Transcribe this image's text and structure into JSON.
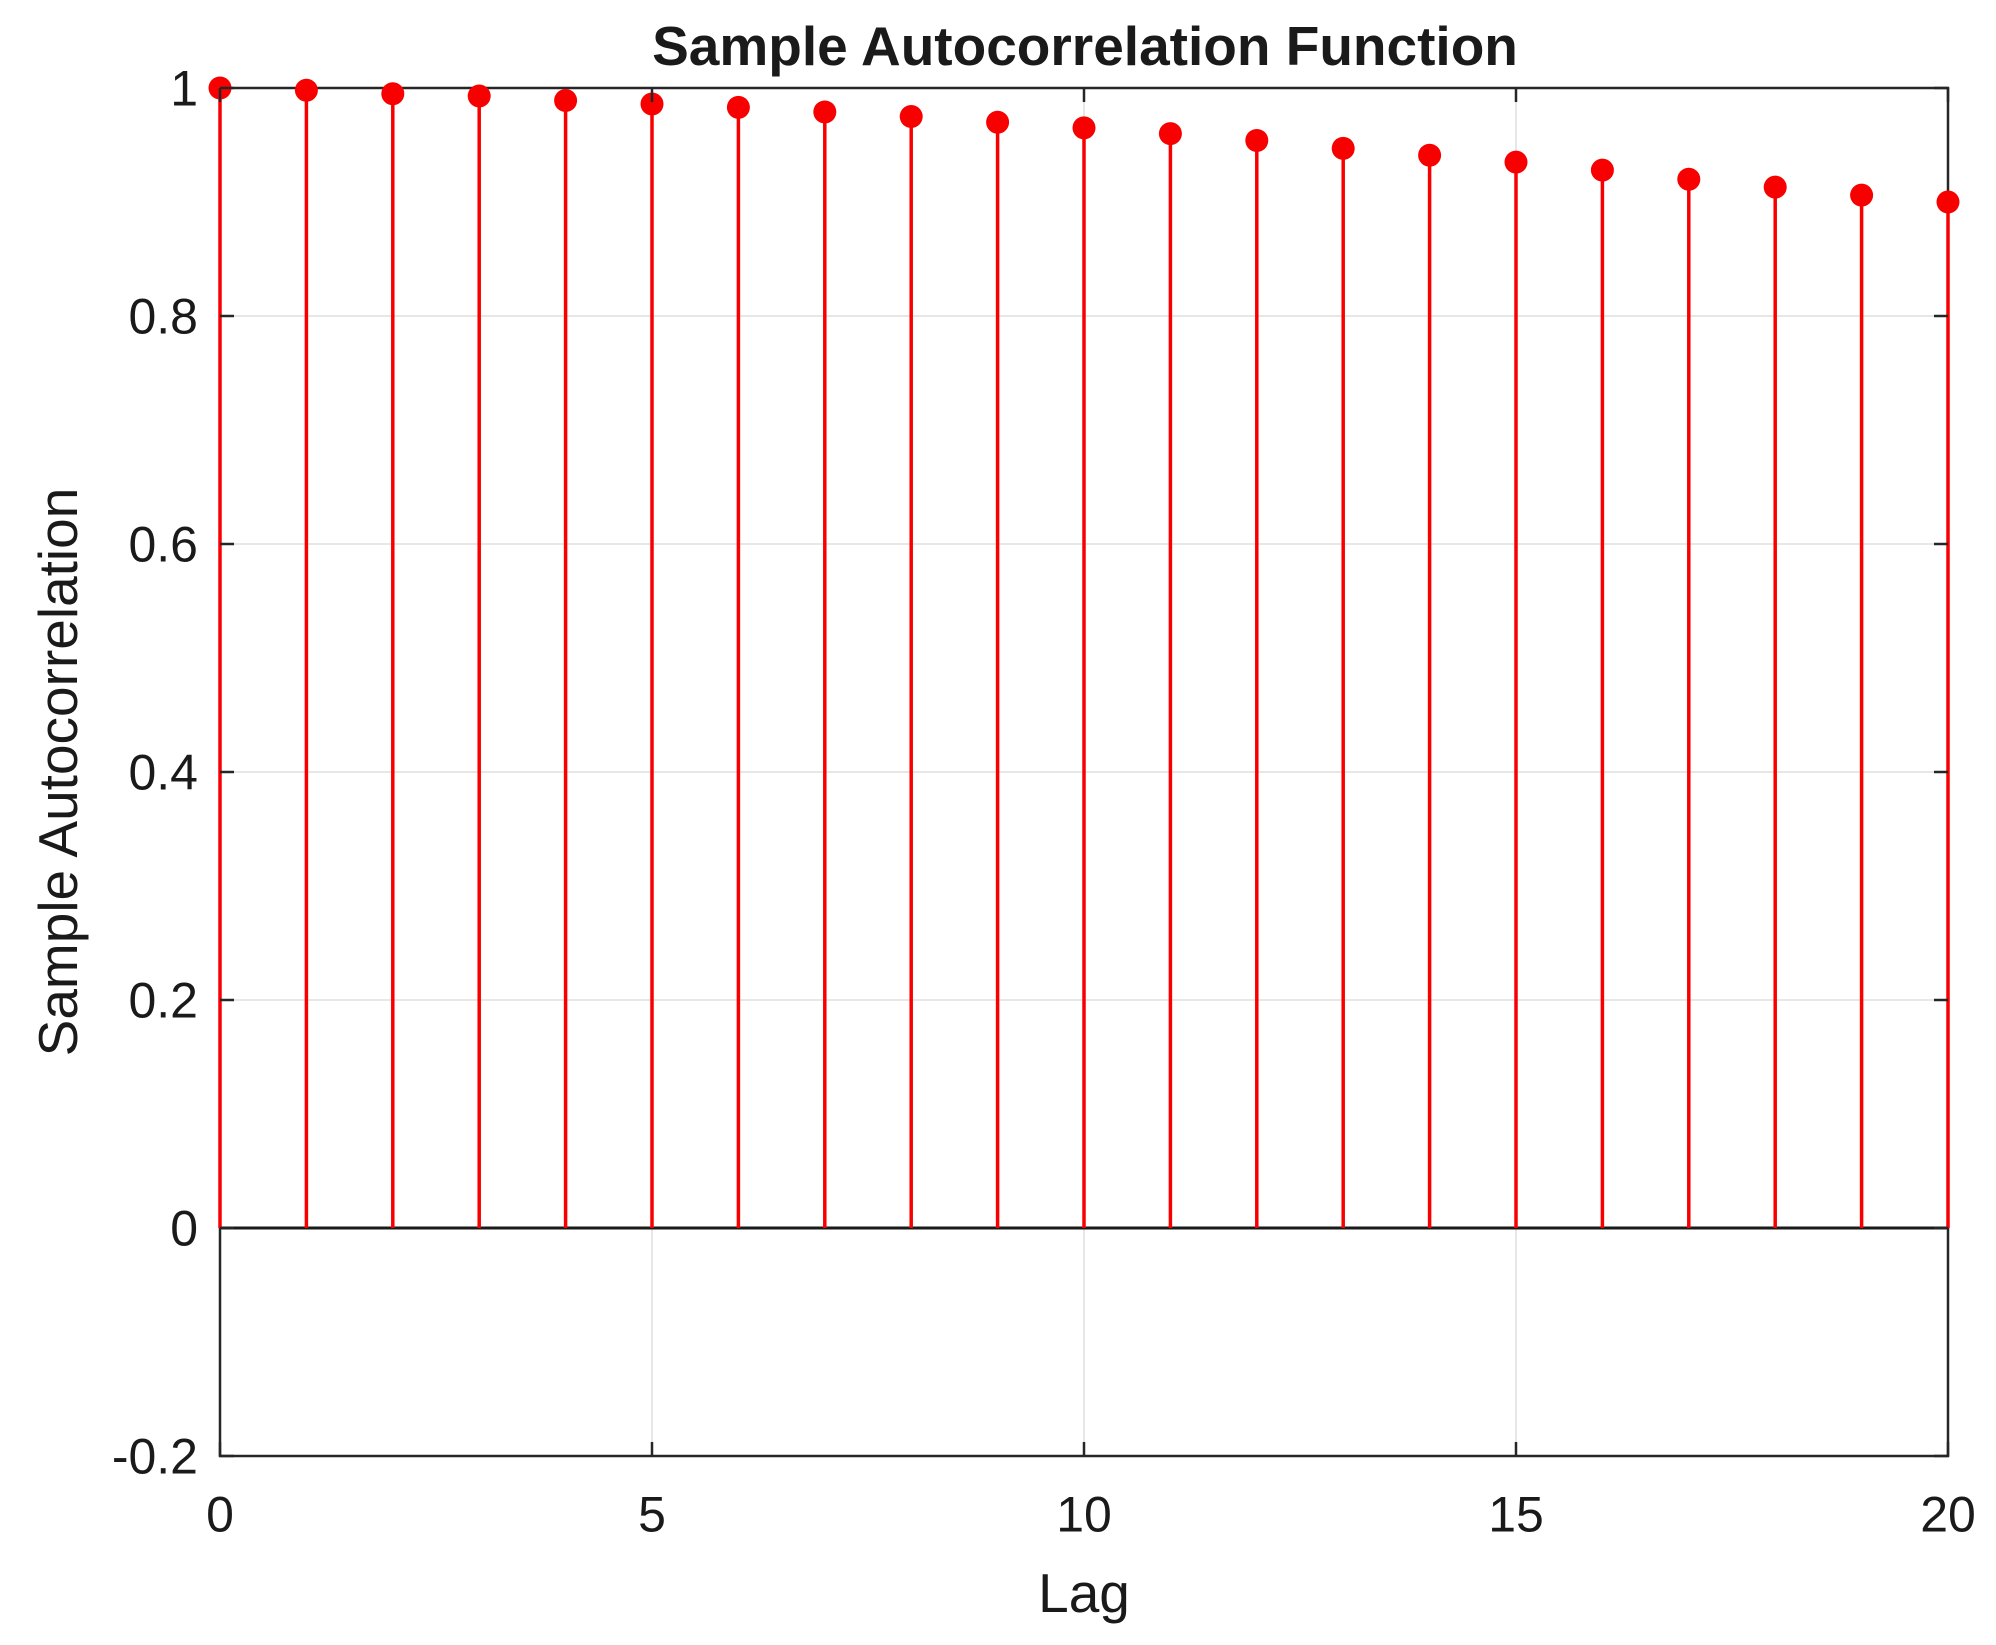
{
  "chart_data": {
    "type": "stem",
    "title": "Sample Autocorrelation Function",
    "xlabel": "Lag",
    "ylabel": "Sample Autocorrelation",
    "x": [
      0,
      1,
      2,
      3,
      4,
      5,
      6,
      7,
      8,
      9,
      10,
      11,
      12,
      13,
      14,
      15,
      16,
      17,
      18,
      19,
      20
    ],
    "values": [
      1.0,
      0.998,
      0.995,
      0.993,
      0.989,
      0.986,
      0.983,
      0.979,
      0.975,
      0.97,
      0.965,
      0.96,
      0.954,
      0.947,
      0.941,
      0.935,
      0.928,
      0.92,
      0.913,
      0.906,
      0.9
    ],
    "xlim": [
      0,
      20
    ],
    "ylim": [
      -0.2,
      1
    ],
    "x_tick_values": [
      0,
      5,
      10,
      15,
      20
    ],
    "x_tick_labels": [
      "0",
      "5",
      "10",
      "15",
      "20"
    ],
    "y_tick_values": [
      1,
      0.8,
      0.6,
      0.4,
      0.2,
      0,
      -0.2
    ],
    "y_tick_labels": [
      "1",
      "0.8",
      "0.6",
      "0.4",
      "0.2",
      "0",
      "-0.2"
    ],
    "baseline_value": 0,
    "grid": "on",
    "legend": "none",
    "colors": {
      "stem": "#f80000",
      "marker": "#f80000",
      "baseline": "#1a1a1a",
      "axis_box": "#262626",
      "grid_line": "#e7e7e7",
      "text": "#1a1a1a"
    }
  }
}
